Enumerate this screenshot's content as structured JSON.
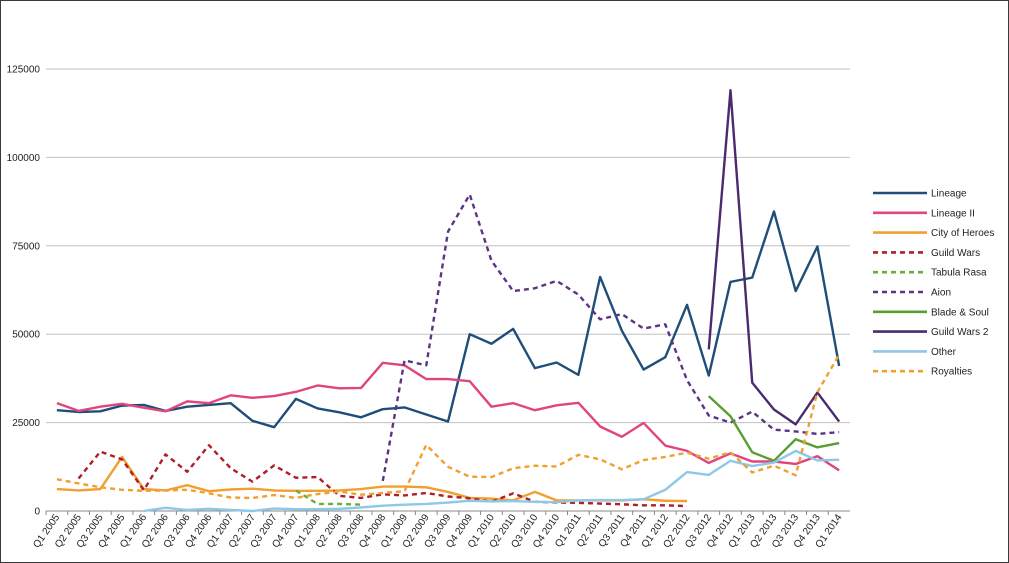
{
  "chart_data": {
    "type": "line",
    "title": "",
    "xlabel": "",
    "ylabel": "",
    "ylim": [
      0,
      125000
    ],
    "yticks": [
      0,
      25000,
      50000,
      75000,
      100000,
      125000
    ],
    "grid": true,
    "legend_position": "right",
    "categories": [
      "Q1 2005",
      "Q2 2005",
      "Q3 2005",
      "Q4 2005",
      "Q1 2006",
      "Q2 2006",
      "Q3 2006",
      "Q4 2006",
      "Q1 2007",
      "Q2 2007",
      "Q3 2007",
      "Q4 2007",
      "Q1 2008",
      "Q2 2008",
      "Q3 2008",
      "Q4 2008",
      "Q1 2009",
      "Q2 2009",
      "Q3 2009",
      "Q4 2009",
      "Q1 2010",
      "Q2 2010",
      "Q3 2010",
      "Q4 2010",
      "Q1 2011",
      "Q2 2011",
      "Q3 2011",
      "Q4 2011",
      "Q1 2012",
      "Q2 2012",
      "Q3 2012",
      "Q4 2012",
      "Q1 2013",
      "Q2 2013",
      "Q3 2013",
      "Q4 2013",
      "Q1 2014"
    ],
    "series": [
      {
        "name": "Lineage",
        "color": "#1f4e79",
        "dashed": false,
        "values": [
          28500,
          28000,
          28200,
          29800,
          30000,
          28300,
          29500,
          30000,
          30500,
          25500,
          23700,
          31700,
          29000,
          27900,
          26500,
          28800,
          29300,
          27300,
          25300,
          50000,
          47300,
          51500,
          40400,
          42000,
          38500,
          66200,
          51000,
          40000,
          43500,
          58300,
          38300,
          64800,
          66000,
          84700,
          62200,
          74800,
          41000
        ]
      },
      {
        "name": "Lineage II",
        "color": "#e0467c",
        "dashed": false,
        "values": [
          30500,
          28300,
          29500,
          30300,
          29200,
          28200,
          31000,
          30500,
          32700,
          32000,
          32500,
          33700,
          35500,
          34700,
          34800,
          41900,
          41200,
          37300,
          37300,
          36700,
          29500,
          30500,
          28500,
          29900,
          30600,
          23900,
          21000,
          24900,
          18500,
          17000,
          13600,
          16300,
          14000,
          14000,
          13300,
          15500,
          11500
        ]
      },
      {
        "name": "City of Heroes",
        "color": "#f0a030",
        "dashed": false,
        "values": [
          6200,
          5800,
          6200,
          15300,
          6200,
          5800,
          7300,
          5600,
          6100,
          6300,
          5800,
          5700,
          5700,
          5800,
          6200,
          6900,
          6900,
          6700,
          5400,
          3700,
          3500,
          3000,
          5400,
          3000,
          3000,
          3000,
          3000,
          3300,
          2900,
          2800,
          null,
          null,
          null,
          null,
          null,
          null,
          null
        ]
      },
      {
        "name": "Guild Wars",
        "color": "#b01e28",
        "dashed": true,
        "values": [
          null,
          9200,
          16800,
          14600,
          5900,
          16000,
          11100,
          18600,
          12100,
          8300,
          12900,
          9400,
          9600,
          4300,
          3700,
          4700,
          4400,
          5100,
          4100,
          3600,
          2600,
          5000,
          2600,
          2400,
          2300,
          2100,
          1900,
          1600,
          1600,
          1400,
          null,
          null,
          null,
          null,
          null,
          null,
          null
        ]
      },
      {
        "name": "Tabula Rasa",
        "color": "#66b032",
        "dashed": true,
        "values": [
          null,
          null,
          null,
          null,
          null,
          null,
          null,
          null,
          null,
          null,
          null,
          5800,
          2000,
          2000,
          1800,
          null,
          null,
          null,
          null,
          null,
          null,
          null,
          null,
          null,
          null,
          null,
          null,
          null,
          null,
          null,
          null,
          null,
          null,
          null,
          null,
          null,
          null
        ]
      },
      {
        "name": "Aion",
        "color": "#5b3486",
        "dashed": true,
        "values": [
          null,
          null,
          null,
          null,
          null,
          null,
          null,
          null,
          null,
          null,
          null,
          null,
          null,
          null,
          null,
          8500,
          42600,
          41200,
          79000,
          89500,
          70800,
          62200,
          63000,
          65100,
          61200,
          54200,
          55700,
          51600,
          52800,
          37000,
          27000,
          25000,
          28100,
          23000,
          22500,
          21800,
          22300
        ]
      },
      {
        "name": "Blade & Soul",
        "color": "#5a9e32",
        "dashed": false,
        "values": [
          null,
          null,
          null,
          null,
          null,
          null,
          null,
          null,
          null,
          null,
          null,
          null,
          null,
          null,
          null,
          null,
          null,
          null,
          null,
          null,
          null,
          null,
          null,
          null,
          null,
          null,
          null,
          null,
          null,
          null,
          32500,
          26800,
          16600,
          14200,
          20300,
          18000,
          19200
        ]
      },
      {
        "name": "Guild Wars 2",
        "color": "#4b2a6e",
        "dashed": false,
        "values": [
          null,
          null,
          null,
          null,
          null,
          null,
          null,
          null,
          null,
          null,
          null,
          null,
          null,
          null,
          null,
          null,
          null,
          null,
          null,
          null,
          null,
          null,
          null,
          null,
          null,
          null,
          null,
          null,
          null,
          null,
          45700,
          119000,
          36300,
          28700,
          24500,
          33500,
          25300
        ]
      },
      {
        "name": "Other",
        "color": "#8ec8e8",
        "dashed": false,
        "values": [
          null,
          null,
          null,
          null,
          0,
          900,
          300,
          600,
          300,
          0,
          700,
          500,
          500,
          600,
          1000,
          1500,
          1800,
          2000,
          2400,
          2900,
          2700,
          2800,
          2600,
          2500,
          3000,
          3100,
          3100,
          3300,
          6000,
          11000,
          10200,
          14200,
          12700,
          13700,
          17000,
          14300,
          14500
        ]
      },
      {
        "name": "Royalties",
        "color": "#f0a030",
        "dashed": true,
        "values": [
          9000,
          7800,
          6700,
          6000,
          5700,
          5800,
          6000,
          5000,
          3800,
          3700,
          4500,
          3700,
          4800,
          5500,
          4600,
          5100,
          5600,
          18700,
          12500,
          9700,
          9600,
          12100,
          12800,
          12600,
          15900,
          14600,
          11800,
          14400,
          15300,
          16500,
          14800,
          16600,
          10900,
          12800,
          10100,
          33600,
          44200
        ]
      }
    ]
  }
}
